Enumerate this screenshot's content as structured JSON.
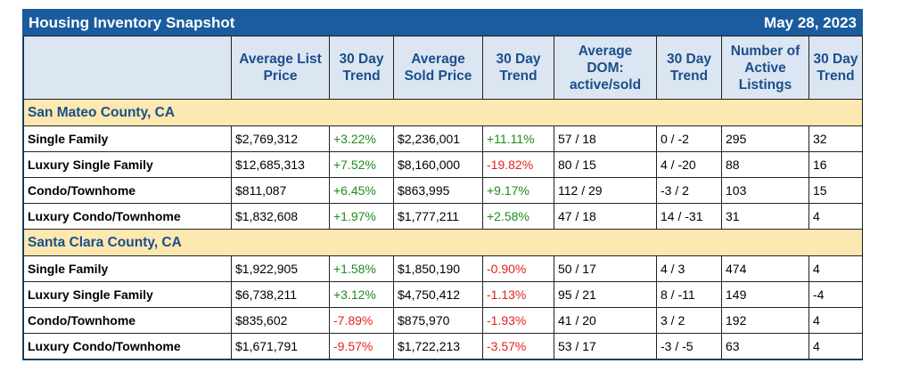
{
  "header": {
    "title": "Housing Inventory Snapshot",
    "date": "May 28, 2023"
  },
  "table": {
    "columns": [
      "",
      "Average List Price",
      "30 Day Trend",
      "Average Sold Price",
      "30 Day Trend",
      "Average DOM: active/sold",
      "30 Day Trend",
      "Number of Active Listings",
      "30 Day Trend"
    ],
    "positive_color": "#1e8c1e",
    "negative_color": "#e3211c",
    "sections": [
      {
        "name": "San Mateo County, CA",
        "rows": [
          [
            "Single Family",
            "$2,769,312",
            "+3.22%",
            "$2,236,001",
            "+11.11%",
            "57 / 18",
            "0 / -2",
            "295",
            "32"
          ],
          [
            "Luxury Single Family",
            "$12,685,313",
            "+7.52%",
            "$8,160,000",
            "-19.82%",
            "80 / 15",
            "4 / -20",
            "88",
            "16"
          ],
          [
            "Condo/Townhome",
            "$811,087",
            "+6.45%",
            "$863,995",
            "+9.17%",
            "112 / 29",
            "-3 / 2",
            "103",
            "15"
          ],
          [
            "Luxury Condo/Townhome",
            "$1,832,608",
            "+1.97%",
            "$1,777,211",
            "+2.58%",
            "47 / 18",
            "14 / -31",
            "31",
            "4"
          ]
        ]
      },
      {
        "name": "Santa Clara County, CA",
        "rows": [
          [
            "Single Family",
            "$1,922,905",
            "+1.58%",
            "$1,850,190",
            "-0.90%",
            "50 / 17",
            "4 / 3",
            "474",
            "4"
          ],
          [
            "Luxury Single Family",
            "$6,738,211",
            "+3.12%",
            "$4,750,412",
            "-1.13%",
            "95 / 21",
            "8 / -11",
            "149",
            "-4"
          ],
          [
            "Condo/Townhome",
            "$835,602",
            "-7.89%",
            "$875,970",
            "-1.93%",
            "41 / 20",
            "3 / 2",
            "192",
            "4"
          ],
          [
            "Luxury Condo/Townhome",
            "$1,671,791",
            "-9.57%",
            "$1,722,213",
            "-3.57%",
            "53 / 17",
            "-3 / -5",
            "63",
            "4"
          ]
        ]
      }
    ]
  }
}
